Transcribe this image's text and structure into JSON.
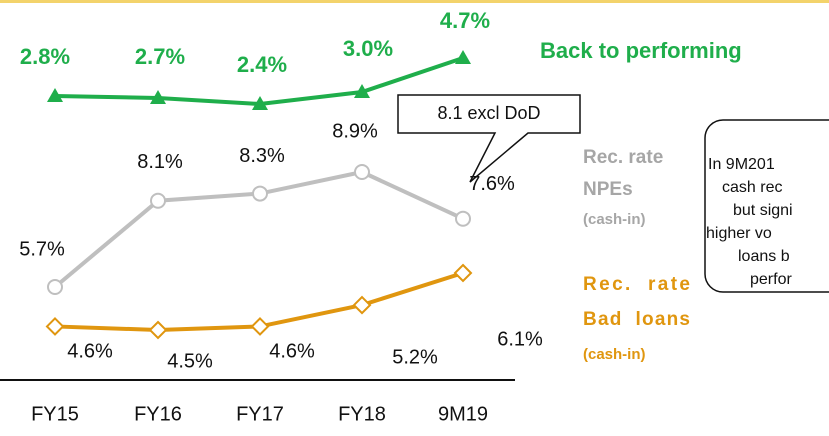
{
  "chart_data": {
    "type": "line",
    "categories": [
      "FY15",
      "FY16",
      "FY17",
      "FY18",
      "9M19"
    ],
    "series": [
      {
        "label_lines": [
          "Back to performing"
        ],
        "color": "#1fae4b",
        "marker": "triangle",
        "values": [
          2.8,
          2.7,
          2.4,
          3.0,
          4.7
        ],
        "value_labels": [
          "2.8%",
          "2.7%",
          "2.4%",
          "3.0%",
          "4.7%"
        ]
      },
      {
        "label_lines": [
          "Rec. rate",
          "NPEs",
          "(cash-in)"
        ],
        "color": "#bfbfbf",
        "marker": "circle",
        "values": [
          5.7,
          8.1,
          8.3,
          8.9,
          7.6
        ],
        "value_labels": [
          "5.7%",
          "8.1%",
          "8.3%",
          "8.9%",
          "7.6%"
        ]
      },
      {
        "label_lines": [
          "Rec.  rate",
          "Bad  loans",
          "(cash-in)"
        ],
        "color": "#e0960f",
        "marker": "diamond",
        "values": [
          4.6,
          4.5,
          4.6,
          5.2,
          6.1
        ],
        "value_labels": [
          "4.6%",
          "4.5%",
          "4.6%",
          "5.2%",
          "6.1%"
        ]
      }
    ],
    "annotations": {
      "callout": "8.1 excl DoD",
      "note_lines": [
        "In 9M201",
        "cash rec",
        "but signi",
        "higher vo",
        "loans b",
        "perfor"
      ]
    }
  }
}
